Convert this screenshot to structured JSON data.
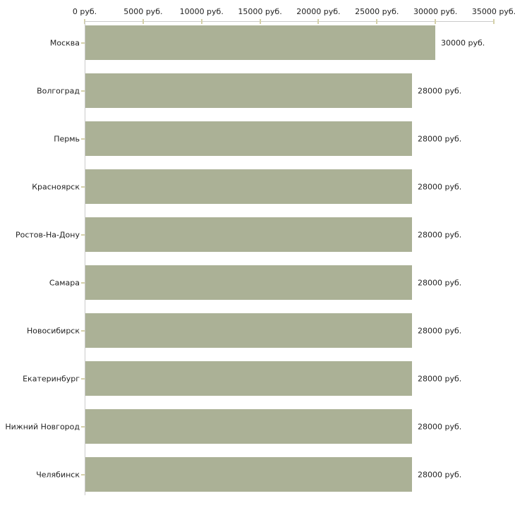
{
  "chart_data": {
    "type": "bar",
    "orientation": "horizontal",
    "title": "",
    "categories": [
      "Москва",
      "Волгоград",
      "Пермь",
      "Красноярск",
      "Ростов-На-Дону",
      "Самара",
      "Новосибирск",
      "Екатеринбург",
      "Нижний Новгород",
      "Челябинск"
    ],
    "values": [
      30000,
      28000,
      28000,
      28000,
      28000,
      28000,
      28000,
      28000,
      28000,
      28000
    ],
    "value_labels": [
      "30000 руб.",
      "28000 руб.",
      "28000 руб.",
      "28000 руб.",
      "28000 руб.",
      "28000 руб.",
      "28000 руб.",
      "28000 руб.",
      "28000 руб.",
      "28000 руб."
    ],
    "x_tick_values": [
      0,
      5000,
      10000,
      15000,
      20000,
      25000,
      30000,
      35000
    ],
    "x_tick_labels": [
      "0 руб.",
      "5000 руб.",
      "10000 руб.",
      "15000 руб.",
      "20000 руб.",
      "25000 руб.",
      "30000 руб.",
      "35000 руб."
    ],
    "xlim": [
      0,
      35000
    ],
    "unit": "руб.",
    "grid": "none",
    "legend_position": "none",
    "colors": {
      "bar": "#abb196",
      "axis_line": "#cbcbcb",
      "tick_mark": "#d5d1a9",
      "text": "#222222",
      "background": "#ffffff"
    }
  }
}
